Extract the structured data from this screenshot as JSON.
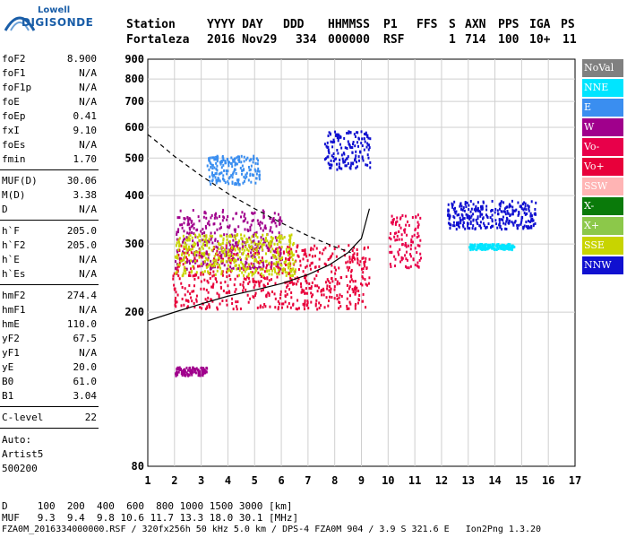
{
  "logo": {
    "line1": "Lowell",
    "line2": "DIGISONDE"
  },
  "header": {
    "labels": [
      "Station",
      "YYYY DAY",
      "DDD",
      "HHMMSS",
      "P1",
      "FFS",
      "S",
      "AXN",
      "PPS",
      "IGA",
      "PS"
    ],
    "values": [
      "Fortaleza",
      "2016 Nov29",
      "334",
      "000000",
      "RSF",
      "1",
      "714",
      "100",
      "10+",
      "11"
    ]
  },
  "params_group1": [
    {
      "name": "foF2",
      "value": "8.900"
    },
    {
      "name": "foF1",
      "value": "N/A"
    },
    {
      "name": "foF1p",
      "value": "N/A"
    },
    {
      "name": "foE",
      "value": "N/A"
    },
    {
      "name": "foEp",
      "value": "0.41"
    },
    {
      "name": "fxI",
      "value": "9.10"
    },
    {
      "name": "foEs",
      "value": "N/A"
    },
    {
      "name": "fmin",
      "value": "1.70"
    }
  ],
  "params_group2": [
    {
      "name": "MUF(D)",
      "value": "30.06"
    },
    {
      "name": "M(D)",
      "value": "3.38"
    },
    {
      "name": "D",
      "value": "N/A"
    }
  ],
  "params_group3": [
    {
      "name": "h`F",
      "value": "205.0"
    },
    {
      "name": "h`F2",
      "value": "205.0"
    },
    {
      "name": "h`E",
      "value": "N/A"
    },
    {
      "name": "h`Es",
      "value": "N/A"
    }
  ],
  "params_group4": [
    {
      "name": "hmF2",
      "value": "274.4"
    },
    {
      "name": "hmF1",
      "value": "N/A"
    },
    {
      "name": "hmE",
      "value": "110.0"
    },
    {
      "name": "yF2",
      "value": "67.5"
    },
    {
      "name": "yF1",
      "value": "N/A"
    },
    {
      "name": "yE",
      "value": "20.0"
    },
    {
      "name": "B0",
      "value": "61.0"
    },
    {
      "name": "B1",
      "value": "3.04"
    }
  ],
  "clevel": {
    "name": "C-level",
    "value": "22"
  },
  "auto": {
    "line1": "Auto:",
    "line2": "Artist5",
    "line3": "500200"
  },
  "footer": {
    "d_row": "D     100  200  400  600  800 1000 1500 3000 [km]",
    "muf_row": "MUF   9.3  9.4  9.8 10.6 11.7 13.3 18.0 30.1 [MHz]",
    "file_row": "FZA0M_2016334000000.RSF / 320fx256h 50 kHz 5.0 km / DPS-4 FZA0M 904 / 3.9 S 321.6 E   Ion2Png 1.3.20"
  },
  "legend": [
    {
      "label": "NoVal",
      "color": "#808080"
    },
    {
      "label": "NNE",
      "color": "#00e5ff"
    },
    {
      "label": "E",
      "color": "#3a8ef0"
    },
    {
      "label": "W",
      "color": "#a0008c"
    },
    {
      "label": "Vo-",
      "color": "#e8004a"
    },
    {
      "label": "Vo+",
      "color": "#e8003a"
    },
    {
      "label": "SSW",
      "color": "#ffb4b4"
    },
    {
      "label": "X-",
      "color": "#0a7a0a"
    },
    {
      "label": "X+",
      "color": "#8cc84a"
    },
    {
      "label": "SSE",
      "color": "#c8d400"
    },
    {
      "label": "NNW",
      "color": "#1010d0"
    }
  ],
  "chart_data": {
    "type": "scatter",
    "title": "",
    "xlabel": "",
    "ylabel": "",
    "xlim": [
      1,
      17
    ],
    "ylim": [
      80,
      900
    ],
    "y_scale": "log",
    "grid": true,
    "x_ticks": [
      1,
      2,
      3,
      4,
      5,
      6,
      7,
      8,
      9,
      10,
      11,
      12,
      13,
      14,
      15,
      16,
      17
    ],
    "y_ticks": [
      80,
      200,
      300,
      400,
      500,
      600,
      700,
      800,
      900
    ],
    "legend_position": "right",
    "clusters": [
      {
        "name": "Vo+",
        "color": "#e8003a",
        "x_range": [
          1.9,
          9.3
        ],
        "y_range": [
          205,
          300
        ]
      },
      {
        "name": "W",
        "color": "#a0008c",
        "x_range": [
          2.0,
          6.0
        ],
        "y_range": [
          260,
          370
        ]
      },
      {
        "name": "SSE",
        "color": "#c8d400",
        "x_range": [
          2.0,
          6.5
        ],
        "y_range": [
          250,
          320
        ]
      },
      {
        "name": "E",
        "color": "#3a8ef0",
        "x_range": [
          3.2,
          5.2
        ],
        "y_range": [
          430,
          510
        ]
      },
      {
        "name": "NNW",
        "color": "#1010d0",
        "x_range": [
          7.6,
          9.3
        ],
        "y_range": [
          470,
          590
        ]
      },
      {
        "name": "Vo-",
        "color": "#e8004a",
        "x_range": [
          10.0,
          11.2
        ],
        "y_range": [
          260,
          360
        ]
      },
      {
        "name": "NNW",
        "color": "#1010d0",
        "x_range": [
          12.2,
          15.5
        ],
        "y_range": [
          330,
          390
        ]
      },
      {
        "name": "NNE",
        "color": "#00e5ff",
        "x_range": [
          13.0,
          14.7
        ],
        "y_range": [
          292,
          302
        ]
      },
      {
        "name": "W",
        "color": "#a0008c",
        "x_range": [
          2.0,
          3.2
        ],
        "y_range": [
          138,
          145
        ]
      }
    ],
    "curves": [
      {
        "name": "virtual height trace",
        "style": "solid",
        "color": "#000000",
        "x": [
          1.0,
          2.0,
          3.0,
          4.0,
          5.0,
          6.0,
          7.0,
          7.8,
          8.5,
          9.0,
          9.3
        ],
        "y": [
          190,
          200,
          210,
          220,
          228,
          237,
          250,
          265,
          285,
          310,
          370
        ]
      },
      {
        "name": "MUF(D) curve",
        "style": "dashed",
        "color": "#000000",
        "x": [
          1.0,
          1.5,
          2.0,
          3.0,
          4.0,
          5.0,
          6.0,
          7.0,
          8.0,
          8.6
        ],
        "y": [
          575,
          540,
          505,
          450,
          405,
          370,
          340,
          315,
          295,
          285
        ]
      }
    ]
  }
}
